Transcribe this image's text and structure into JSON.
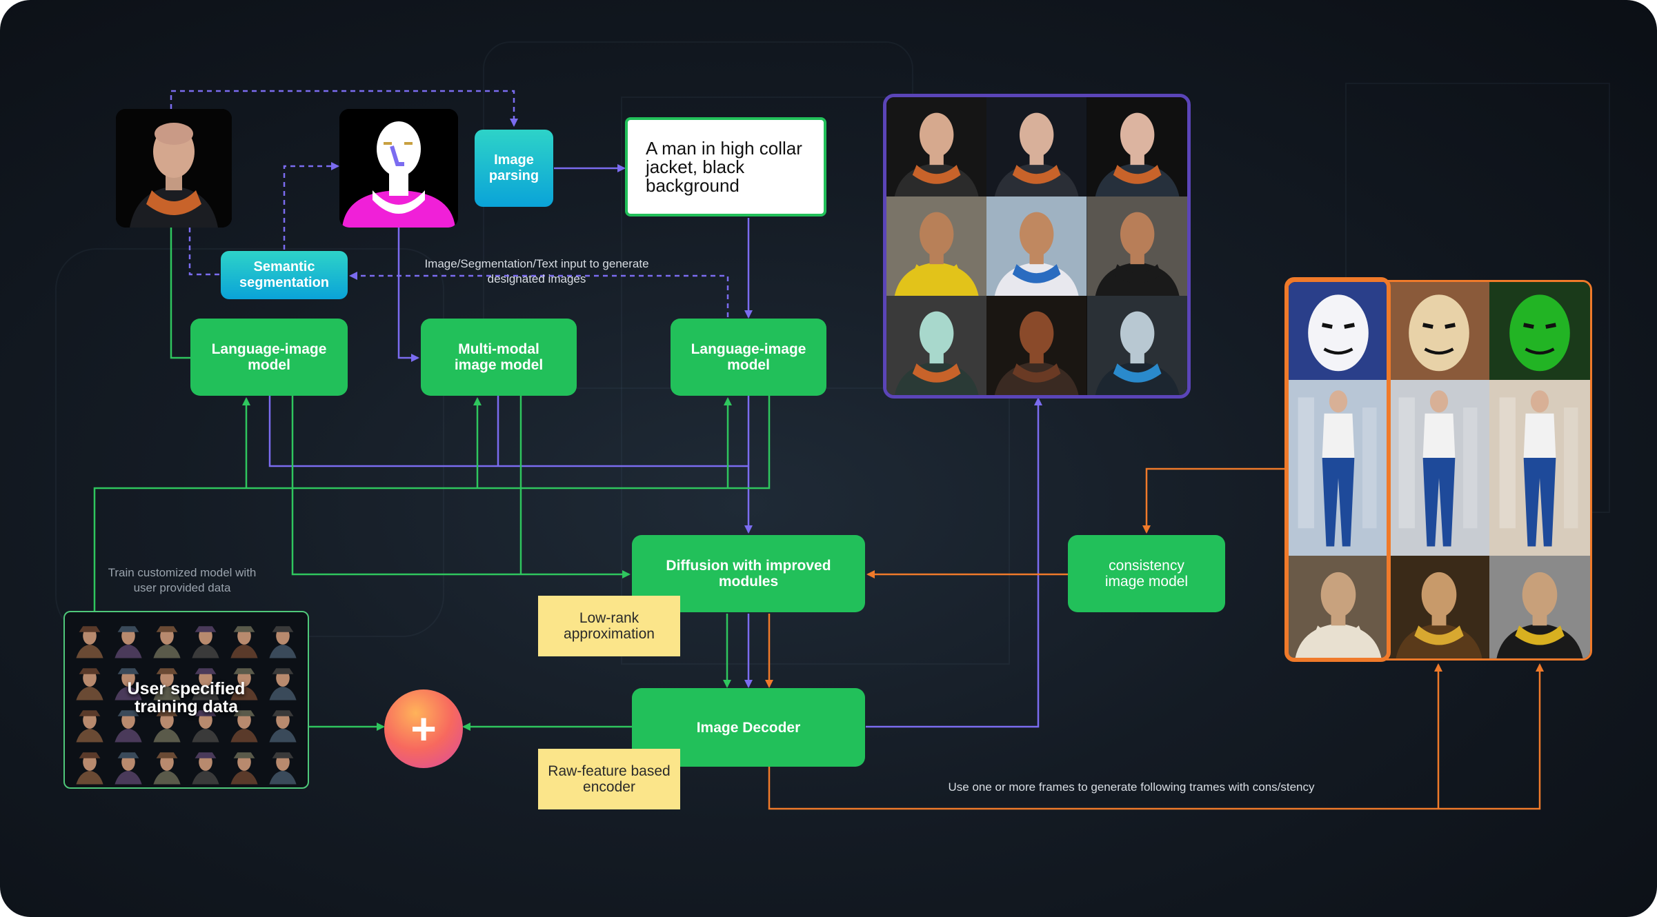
{
  "nodes": {
    "image_parsing": "Image parsing",
    "prompt_text": "A man in high collar jacket, black background",
    "semantic_segmentation": "Semantic segmentation",
    "language_image_model_left": "Language-image model",
    "multimodal_image_model": "Multi-modal image model",
    "language_image_model_right": "Language-image model",
    "diffusion": "Diffusion with improved modules",
    "low_rank": "Low-rank approximation",
    "image_decoder": "Image Decoder",
    "raw_feature_encoder": "Raw-feature based encoder",
    "consistency_model": "consistency image model",
    "training_data": "User specified training data",
    "plus_symbol": "+"
  },
  "annotations": {
    "image_input_note": "Image/Segmentation/Text input to generate designated images",
    "train_note": "Train customized model with user provided data",
    "frames_note": "Use one or more frames to generate following trames with cons/stency"
  },
  "colors": {
    "green_node": "#22c05a",
    "teal_node": "#0aa3d8",
    "note_yellow": "#fbe58a",
    "purple_arrow": "#7b6cf0",
    "green_arrow": "#2fc65e",
    "orange_arrow": "#f07a2a",
    "purple_frame": "#5b45b8",
    "orange_frame": "#f07a2a"
  }
}
